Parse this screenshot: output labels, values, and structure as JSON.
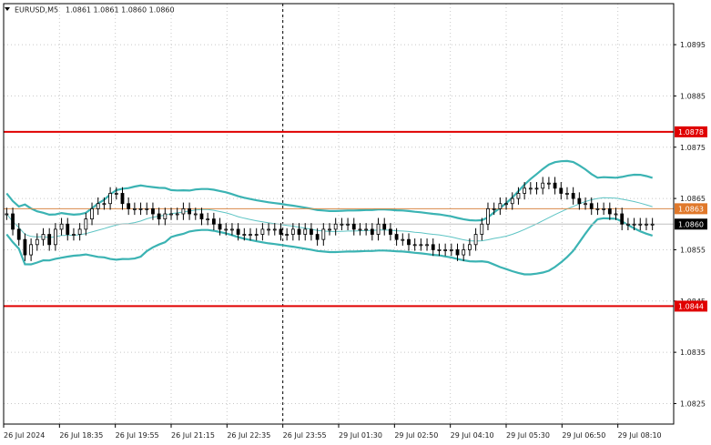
{
  "header": {
    "menu_icon": "triangle-down-icon",
    "symbol_text": "EURUSD,M5",
    "ohlc_text": "1.0861 1.0861 1.0860 1.0860"
  },
  "colors": {
    "background": "#ffffff",
    "grid": "#c8c8c8",
    "axis": "#000000",
    "candle": "#000000",
    "bollinger": "#3bb3b3",
    "middle_band": "#5ec4c4",
    "level_line": "#e00000",
    "price_line": "#d98a4a",
    "bid_line": "#c0c0c0",
    "label_fill_level": "#e00000",
    "label_fill_price": "#e0782a",
    "label_fill_bid": "#000000",
    "label_text_light": "#ffffff"
  },
  "chart_data": {
    "type": "candlestick",
    "symbol": "EURUSD",
    "timeframe": "M5",
    "ylim": [
      1.0821,
      1.0903
    ],
    "y_ticks": [
      "1.0895",
      "1.0885",
      "1.0875",
      "1.0865",
      "1.0855",
      "1.0845",
      "1.0835",
      "1.0825"
    ],
    "x_ticks": [
      "26 Jul 2024",
      "26 Jul 18:35",
      "26 Jul 19:55",
      "26 Jul 21:15",
      "26 Jul 22:35",
      "26 Jul 23:55",
      "29 Jul 01:30",
      "29 Jul 02:50",
      "29 Jul 04:10",
      "29 Jul 05:30",
      "29 Jul 06:50",
      "29 Jul 08:10"
    ],
    "grid": true,
    "session_separator_after": "26 Jul 22:35",
    "horizontal_levels": [
      {
        "value": 1.0878,
        "label": "1.0878",
        "kind": "resistance"
      },
      {
        "value": 1.0844,
        "label": "1.0844",
        "kind": "support"
      }
    ],
    "price_marker": {
      "value": 1.0863,
      "label": "1.0863"
    },
    "current_price": {
      "value": 1.086,
      "label": "1.0860"
    },
    "close_series": [
      1.0862,
      1.0859,
      1.0857,
      1.0854,
      1.0856,
      1.0857,
      1.0858,
      1.0856,
      1.0859,
      1.086,
      1.0858,
      1.0858,
      1.0859,
      1.0861,
      1.0863,
      1.0864,
      1.0864,
      1.0866,
      1.0866,
      1.0864,
      1.0863,
      1.0863,
      1.0863,
      1.0863,
      1.0862,
      1.0861,
      1.0862,
      1.0862,
      1.0862,
      1.0863,
      1.0862,
      1.0862,
      1.0861,
      1.0861,
      1.086,
      1.0859,
      1.0859,
      1.0859,
      1.0858,
      1.0858,
      1.0858,
      1.0858,
      1.0859,
      1.0859,
      1.0859,
      1.0858,
      1.0858,
      1.0859,
      1.0858,
      1.0859,
      1.0858,
      1.0857,
      1.0859,
      1.0859,
      1.086,
      1.086,
      1.086,
      1.0859,
      1.0859,
      1.0859,
      1.0858,
      1.086,
      1.0859,
      1.0858,
      1.0857,
      1.0857,
      1.0856,
      1.0856,
      1.0856,
      1.0856,
      1.0855,
      1.0855,
      1.0855,
      1.0855,
      1.0854,
      1.0855,
      1.0856,
      1.0858,
      1.086,
      1.0863,
      1.0863,
      1.0864,
      1.0864,
      1.0865,
      1.0866,
      1.0867,
      1.0867,
      1.0867,
      1.0868,
      1.0868,
      1.0867,
      1.0866,
      1.0866,
      1.0865,
      1.0864,
      1.0864,
      1.0863,
      1.0863,
      1.0863,
      1.0862,
      1.0862,
      1.086,
      1.086,
      1.086,
      1.086,
      1.086,
      1.086
    ]
  }
}
